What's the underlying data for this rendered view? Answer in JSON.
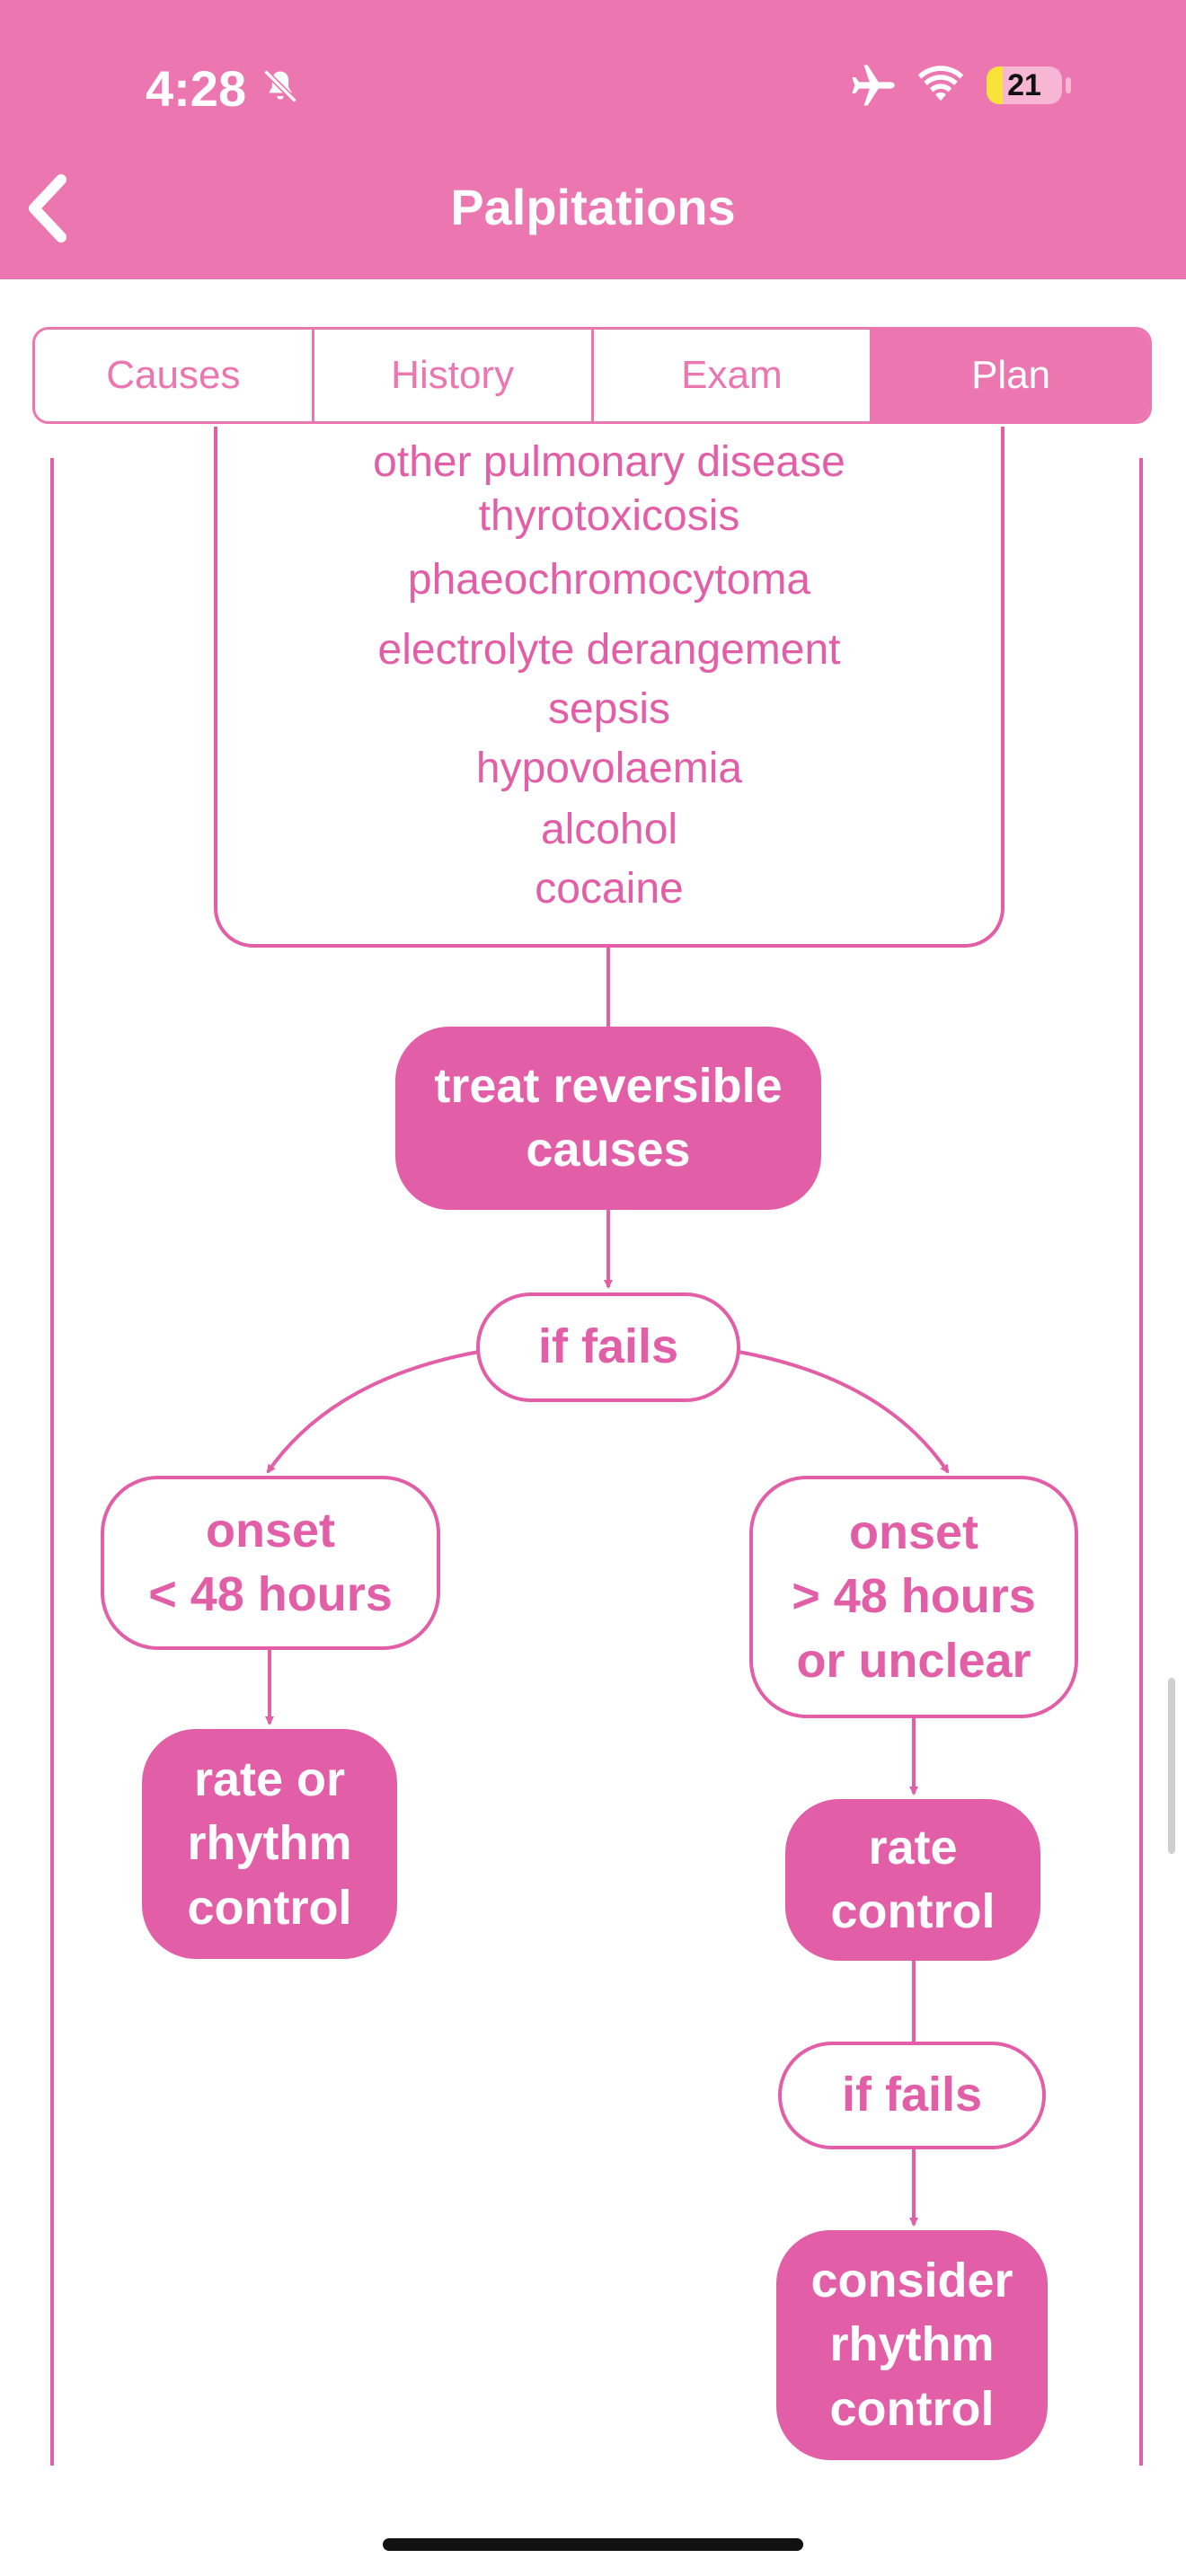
{
  "status_bar": {
    "time": "4:28",
    "battery": "21",
    "battery_level": 0.21
  },
  "nav": {
    "title": "Palpitations"
  },
  "tabs": [
    {
      "label": "Causes",
      "active": false
    },
    {
      "label": "History",
      "active": false
    },
    {
      "label": "Exam",
      "active": false
    },
    {
      "label": "Plan",
      "active": true
    }
  ],
  "flowchart": {
    "causes": [
      "other pulmonary disease",
      "thyrotoxicosis",
      "phaeochromocytoma",
      "electrolyte derangement",
      "sepsis",
      "hypovolaemia",
      "alcohol",
      "cocaine"
    ],
    "treat": "treat reversible causes",
    "if_fails_1": "if fails",
    "onset_short": "onset\n< 48 hours",
    "onset_long": "onset\n> 48 hours\nor unclear",
    "rate_or_rhythm": "rate or\nrhythm\ncontrol",
    "rate_control": "rate\ncontrol",
    "if_fails_2": "if fails",
    "consider_rhythm": "consider\nrhythm\ncontrol"
  },
  "colors": {
    "header": "#ec76b0",
    "accent": "#e25ea6",
    "text_on_accent": "#ffffff"
  },
  "icons": {
    "back": "chevron-left-icon",
    "silent": "bell-slash-icon",
    "airplane": "airplane-icon",
    "wifi": "wifi-icon"
  }
}
